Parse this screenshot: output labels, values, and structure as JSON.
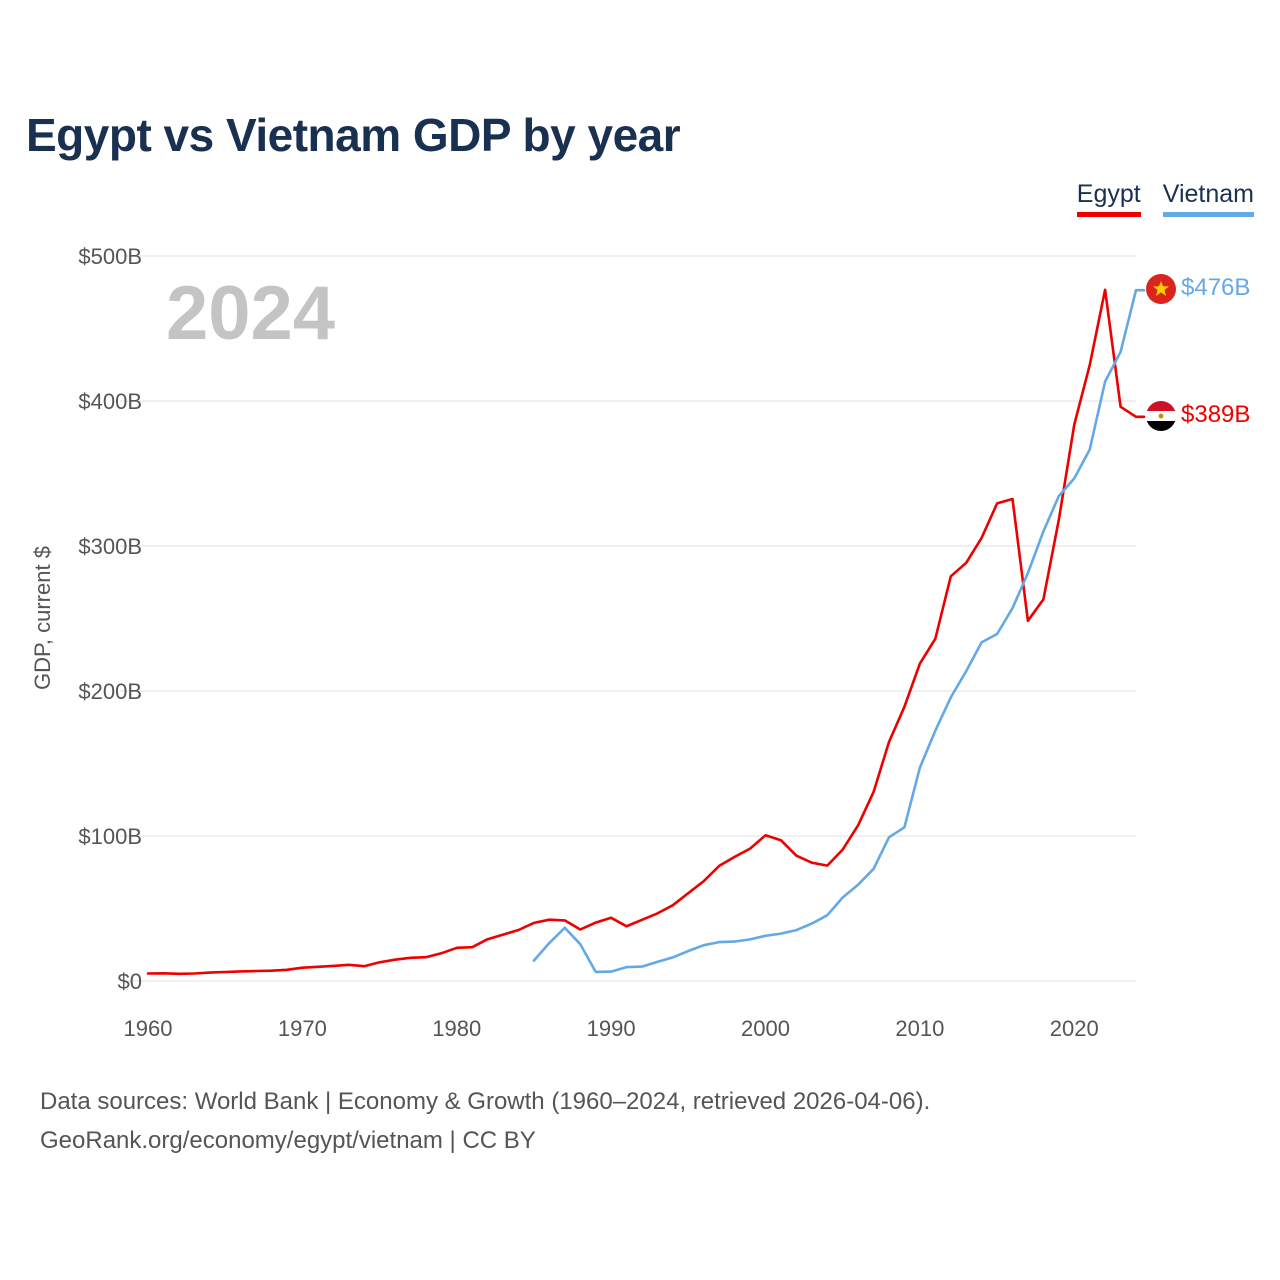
{
  "colors": {
    "egypt": "#ee0000",
    "vietnam": "#64a8e6",
    "title": "#1a3050",
    "grid": "#e6e6e6"
  },
  "chart_data": {
    "type": "line",
    "title": "Egypt vs Vietnam GDP by year",
    "year_label": "2024",
    "xlabel": "",
    "ylabel": "GDP, current $",
    "xlim": [
      1960,
      2024
    ],
    "ylim": [
      0,
      500
    ],
    "x_ticks": [
      1960,
      1970,
      1980,
      1990,
      2000,
      2010,
      2020
    ],
    "x_tick_labels": [
      "1960",
      "1970",
      "1980",
      "1990",
      "2000",
      "2010",
      "2020"
    ],
    "y_ticks": [
      0,
      100,
      200,
      300,
      400,
      500
    ],
    "y_tick_labels": [
      "$0",
      "$100B",
      "$200B",
      "$300B",
      "$400B",
      "$500B"
    ],
    "legend_position": "top-right",
    "series": [
      {
        "key": "egypt",
        "name": "Egypt",
        "end_label": "$389B",
        "flag_icon": "egypt-flag-icon",
        "x": [
          1960,
          1961,
          1962,
          1963,
          1964,
          1965,
          1966,
          1967,
          1968,
          1969,
          1970,
          1971,
          1972,
          1973,
          1974,
          1975,
          1976,
          1977,
          1978,
          1979,
          1980,
          1981,
          1982,
          1983,
          1984,
          1985,
          1986,
          1987,
          1988,
          1989,
          1990,
          1991,
          1992,
          1993,
          1994,
          1995,
          1996,
          1997,
          1998,
          1999,
          2000,
          2001,
          2002,
          2003,
          2004,
          2005,
          2006,
          2007,
          2008,
          2009,
          2010,
          2011,
          2012,
          2013,
          2014,
          2015,
          2016,
          2017,
          2018,
          2019,
          2020,
          2021,
          2022,
          2023,
          2024
        ],
        "values": [
          5.2,
          5.3,
          5.0,
          5.2,
          5.8,
          6.2,
          6.6,
          6.9,
          7.1,
          7.7,
          9.2,
          9.8,
          10.4,
          11.2,
          10.2,
          12.9,
          14.7,
          16.0,
          16.4,
          19.1,
          22.9,
          23.3,
          28.8,
          32.0,
          35.2,
          40.1,
          42.3,
          41.8,
          35.5,
          40.3,
          43.6,
          37.7,
          42.2,
          46.6,
          52.3,
          60.6,
          68.9,
          79.4,
          85.6,
          91.3,
          100.5,
          97.1,
          86.4,
          81.6,
          79.6,
          90.6,
          107.4,
          130.4,
          164.8,
          189.1,
          218.9,
          236.0,
          279.1,
          288.4,
          305.6,
          329.4,
          332.4,
          248.4,
          263.2,
          318.0,
          383.8,
          424.7,
          476.7,
          396.0,
          389.1
        ]
      },
      {
        "key": "vietnam",
        "name": "Vietnam",
        "end_label": "$476B",
        "flag_icon": "vietnam-flag-icon",
        "x": [
          1985,
          1986,
          1987,
          1988,
          1989,
          1990,
          1991,
          1992,
          1993,
          1994,
          1995,
          1996,
          1997,
          1998,
          1999,
          2000,
          2001,
          2002,
          2003,
          2004,
          2005,
          2006,
          2007,
          2008,
          2009,
          2010,
          2011,
          2012,
          2013,
          2014,
          2015,
          2016,
          2017,
          2018,
          2019,
          2020,
          2021,
          2022,
          2023,
          2024
        ],
        "values": [
          14.1,
          26.3,
          36.7,
          25.4,
          6.3,
          6.5,
          9.6,
          9.9,
          13.2,
          16.3,
          20.7,
          24.7,
          26.8,
          27.2,
          28.7,
          31.2,
          32.7,
          35.1,
          39.6,
          45.4,
          57.6,
          66.4,
          77.4,
          99.1,
          106.0,
          147.2,
          172.6,
          195.6,
          213.7,
          233.5,
          239.3,
          257.1,
          281.4,
          310.1,
          334.4,
          346.6,
          366.5,
          413.4,
          433.9,
          476.4
        ]
      }
    ]
  },
  "footer": {
    "line1": "Data sources: World Bank | Economy & Growth (1960–2024, retrieved 2026-04-06).",
    "line2": "GeoRank.org/economy/egypt/vietnam | CC BY"
  }
}
